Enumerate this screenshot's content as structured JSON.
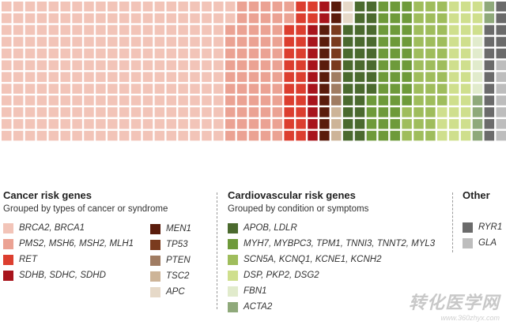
{
  "chart_data": {
    "type": "waffle",
    "grid": {
      "columns": 43,
      "rows": 12,
      "note": "grid cells are categorical counts"
    },
    "groups": [
      {
        "title": "Cancer risk genes",
        "subtitle": "Grouped by types of cancer or syndrome",
        "entries": [
          {
            "label": "BRCA2, BRCA1",
            "color": "#f2c4b8",
            "cells": 230
          },
          {
            "label": "PMS2, MSH6, MSH2, MLH1",
            "color": "#eba293",
            "cells": 60
          },
          {
            "label": "RET",
            "color": "#dc3e2f",
            "cells": 24
          },
          {
            "label": "SDHB, SDHC, SDHD",
            "color": "#a8141c",
            "cells": 12
          }
        ]
      },
      {
        "title": "",
        "subtitle": "",
        "entries": [
          {
            "label": "MEN1",
            "color": "#5a1c0c",
            "cells": 12
          },
          {
            "label": "TP53",
            "color": "#7a3b1e",
            "cells": 4
          },
          {
            "label": "PTEN",
            "color": "#a07c62",
            "cells": 3
          },
          {
            "label": "TSC2",
            "color": "#cdb498",
            "cells": 3
          },
          {
            "label": "APC",
            "color": "#e6d9c8",
            "cells": 2
          }
        ]
      },
      {
        "title": "Cardiovascular risk genes",
        "subtitle": "Grouped by condition or symptoms",
        "entries": [
          {
            "label": "APOB, LDLR",
            "color": "#4b6a2e",
            "cells": 30
          },
          {
            "label": "MYH7, MYBPC3, TPM1, TNNI3, TNNT2, MYL3",
            "color": "#6e9a3a",
            "cells": 37
          },
          {
            "label": "SCN5A, KCNQ1, KCNE1, KCNH2",
            "color": "#9fbd5c",
            "cells": 36
          },
          {
            "label": "DSP, PKP2, DSG2",
            "color": "#cfdf8d",
            "cells": 30
          },
          {
            "label": "FBN1",
            "color": "#e1ebcc",
            "cells": 5
          },
          {
            "label": "ACTA2",
            "color": "#8fa97a",
            "cells": 6
          }
        ]
      },
      {
        "title": "Other",
        "subtitle": "",
        "entries": [
          {
            "label": "RYR1",
            "color": "#6b6b6b",
            "cells": 15
          },
          {
            "label": "GLA",
            "color": "#bdbdbd",
            "cells": 7
          }
        ]
      }
    ]
  },
  "watermark": {
    "main": "转化医学网",
    "url": "www.360zhyx.com"
  }
}
